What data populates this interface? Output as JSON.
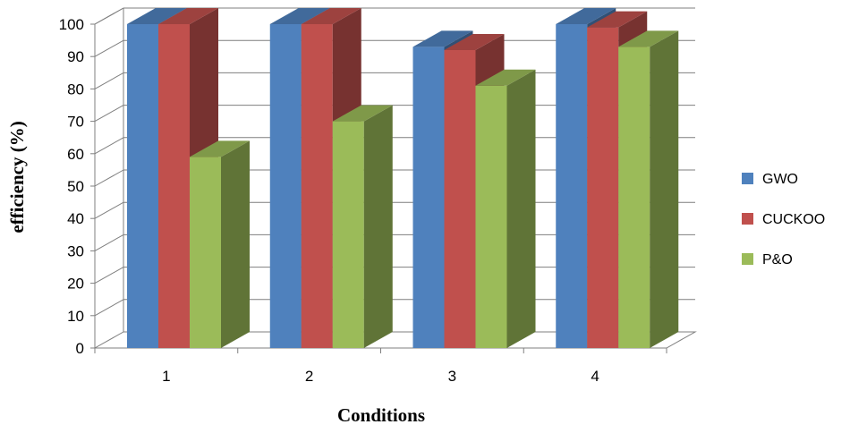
{
  "chart_data": {
    "type": "bar",
    "style": "3d-clustered-column",
    "title": "",
    "xlabel": "Conditions",
    "ylabel": "efficiency (%)",
    "categories": [
      "1",
      "2",
      "3",
      "4"
    ],
    "yticks": [
      "0",
      "10",
      "20",
      "30",
      "40",
      "50",
      "60",
      "70",
      "80",
      "90",
      "100"
    ],
    "ylim": [
      0,
      100
    ],
    "grid": true,
    "legend_position": "right",
    "series": [
      {
        "name": "GWO",
        "values": [
          100,
          100,
          93,
          100
        ],
        "color": "#4F81BD"
      },
      {
        "name": "CUCKOO",
        "values": [
          100,
          100,
          92,
          99
        ],
        "color": "#C0504D"
      },
      {
        "name": "P&O",
        "values": [
          59,
          70,
          81,
          93
        ],
        "color": "#9BBB59"
      }
    ]
  }
}
